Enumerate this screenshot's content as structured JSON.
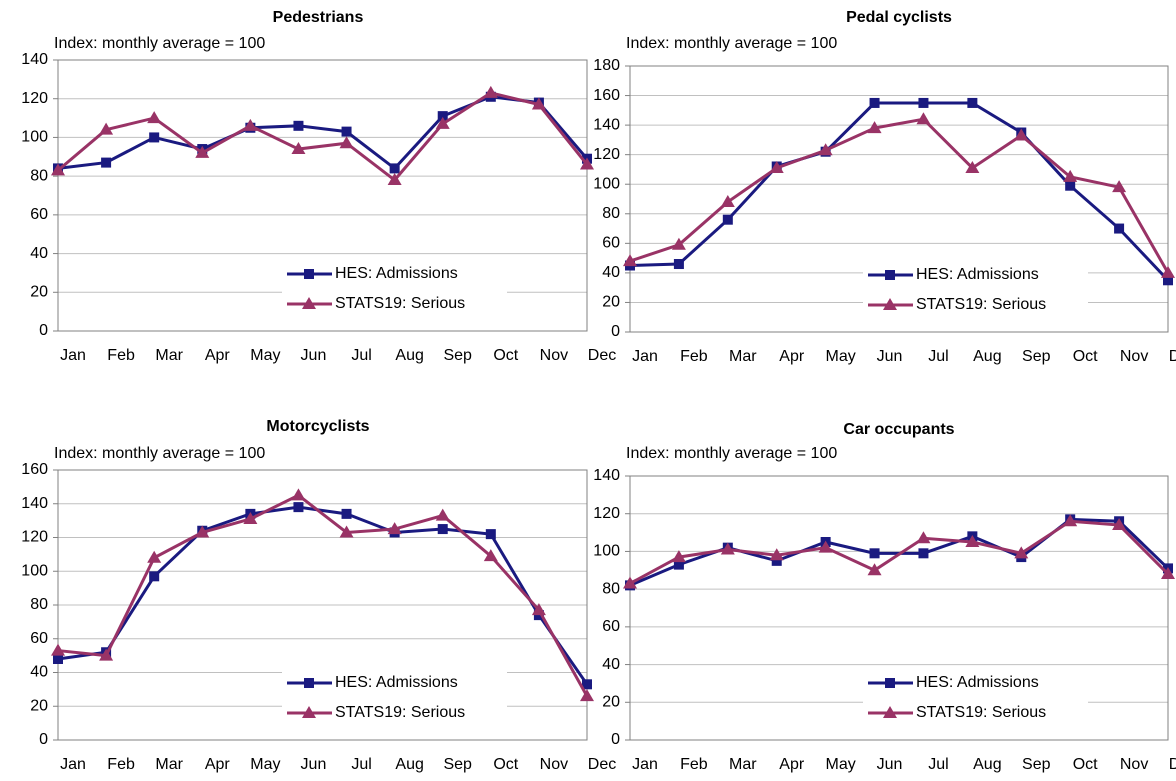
{
  "chart_data": [
    {
      "type": "line",
      "title": "Pedestrians",
      "subtitle": "Index: monthly average = 100",
      "categories": [
        "Jan",
        "Feb",
        "Mar",
        "Apr",
        "May",
        "Jun",
        "Jul",
        "Aug",
        "Sep",
        "Oct",
        "Nov",
        "Dec"
      ],
      "series": [
        {
          "name": "HES: Admissions",
          "color": "#1a1a80",
          "marker": "square",
          "values": [
            84,
            87,
            100,
            94,
            105,
            106,
            103,
            84,
            111,
            121,
            118,
            89
          ]
        },
        {
          "name": "STATS19: Serious",
          "color": "#993366",
          "marker": "triangle",
          "values": [
            83,
            104,
            110,
            92,
            106,
            94,
            97,
            78,
            107,
            123,
            117,
            86
          ]
        }
      ],
      "ylim": [
        0,
        140
      ],
      "yticks": [
        0,
        20,
        40,
        60,
        80,
        100,
        120,
        140
      ],
      "grid": true,
      "legend": "lower right"
    },
    {
      "type": "line",
      "title": "Pedal cyclists",
      "subtitle": "Index: monthly average = 100",
      "categories": [
        "Jan",
        "Feb",
        "Mar",
        "Apr",
        "May",
        "Jun",
        "Jul",
        "Aug",
        "Sep",
        "Oct",
        "Nov",
        "Dec"
      ],
      "series": [
        {
          "name": "HES: Admissions",
          "color": "#1a1a80",
          "marker": "square",
          "values": [
            45,
            46,
            76,
            112,
            122,
            155,
            155,
            155,
            135,
            99,
            70,
            35
          ]
        },
        {
          "name": "STATS19: Serious",
          "color": "#993366",
          "marker": "triangle",
          "values": [
            48,
            59,
            88,
            111,
            123,
            138,
            144,
            111,
            133,
            105,
            98,
            40
          ]
        }
      ],
      "ylim": [
        0,
        180
      ],
      "yticks": [
        0,
        20,
        40,
        60,
        80,
        100,
        120,
        140,
        160,
        180
      ],
      "grid": true,
      "legend": "lower right"
    },
    {
      "type": "line",
      "title": "Motorcyclists",
      "subtitle": "Index: monthly average = 100",
      "categories": [
        "Jan",
        "Feb",
        "Mar",
        "Apr",
        "May",
        "Jun",
        "Jul",
        "Aug",
        "Sep",
        "Oct",
        "Nov",
        "Dec"
      ],
      "series": [
        {
          "name": "HES: Admissions",
          "color": "#1a1a80",
          "marker": "square",
          "values": [
            48,
            52,
            97,
            124,
            134,
            138,
            134,
            123,
            125,
            122,
            74,
            33
          ]
        },
        {
          "name": "STATS19: Serious",
          "color": "#993366",
          "marker": "triangle",
          "values": [
            53,
            50,
            108,
            123,
            131,
            145,
            123,
            125,
            133,
            109,
            77,
            26
          ]
        }
      ],
      "ylim": [
        0,
        160
      ],
      "yticks": [
        0,
        20,
        40,
        60,
        80,
        100,
        120,
        140,
        160
      ],
      "grid": true,
      "legend": "lower right"
    },
    {
      "type": "line",
      "title": "Car occupants",
      "subtitle": "Index: monthly average = 100",
      "categories": [
        "Jan",
        "Feb",
        "Mar",
        "Apr",
        "May",
        "Jun",
        "Jul",
        "Aug",
        "Sep",
        "Oct",
        "Nov",
        "Dec"
      ],
      "series": [
        {
          "name": "HES: Admissions",
          "color": "#1a1a80",
          "marker": "square",
          "values": [
            82,
            93,
            102,
            95,
            105,
            99,
            99,
            108,
            97,
            117,
            116,
            91
          ]
        },
        {
          "name": "STATS19: Serious",
          "color": "#993366",
          "marker": "triangle",
          "values": [
            83,
            97,
            101,
            98,
            102,
            90,
            107,
            105,
            99,
            116,
            114,
            88
          ]
        }
      ],
      "ylim": [
        0,
        140
      ],
      "yticks": [
        0,
        20,
        40,
        60,
        80,
        100,
        120,
        140
      ],
      "grid": true,
      "legend": "lower right"
    }
  ]
}
